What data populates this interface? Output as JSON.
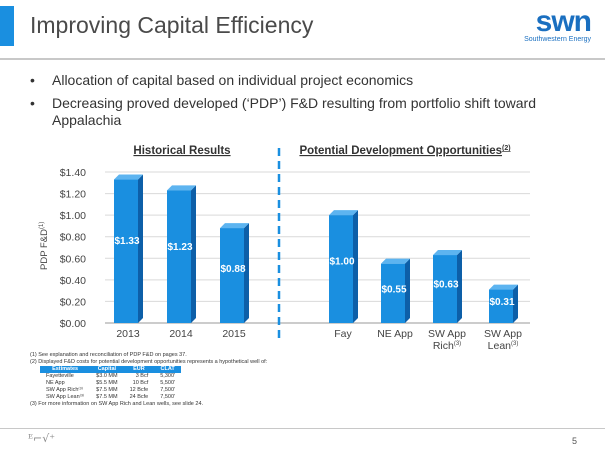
{
  "header": {
    "title": "Improving Capital Efficiency",
    "logo_main": "swn",
    "logo_sub": "Southwestern Energy"
  },
  "bullets": [
    "Allocation of capital based on individual project economics",
    "Decreasing proved developed (‘PDP’) F&D resulting from portfolio shift toward Appalachia"
  ],
  "chart_data": {
    "type": "bar",
    "ylabel": "PDP F&D",
    "ylabel_sup": "(1)",
    "ylim": [
      0,
      1.4
    ],
    "yticks": [
      "$0.00",
      "$0.20",
      "$0.40",
      "$0.60",
      "$0.80",
      "$1.00",
      "$1.20",
      "$1.40"
    ],
    "groups": [
      {
        "title": "Historical Results",
        "title_sup": ""
      },
      {
        "title": "Potential Development Opportunities",
        "title_sup": "(2)"
      }
    ],
    "categories": [
      "2013",
      "2014",
      "2015",
      "Fay",
      "NE App",
      "SW App Rich",
      "SW App Lean"
    ],
    "category_sups": [
      "",
      "",
      "",
      "",
      "",
      "(3)",
      "(3)"
    ],
    "values": [
      1.33,
      1.23,
      0.88,
      1.0,
      0.55,
      0.63,
      0.31
    ],
    "labels": [
      "$1.33",
      "$1.23",
      "$0.88",
      "$1.00",
      "$0.55",
      "$0.63",
      "$0.31"
    ],
    "colors": {
      "bar": "#1a8fe0",
      "bar_side": "#0d5fa8",
      "bar_top": "#5db4f0",
      "divider": "#1a8fe0"
    },
    "grid": true
  },
  "footnotes": {
    "n1": "(1)   See explanation and reconciliation of PDP F&D on pages 37.",
    "n2": "(2)   Displayed F&D costs for potential development opportunities represents a hypothetical well of:",
    "table_headers": [
      "Estimates",
      "Capital",
      "EUR",
      "CLAT"
    ],
    "table_rows": [
      [
        "Fayetteville",
        "$3.0 MM",
        "3 Bcf",
        "5,300'"
      ],
      [
        "NE App",
        "$5.5 MM",
        "10 Bcf",
        "5,500'"
      ],
      [
        "SW App Rich⁽³⁾",
        "$7.5 MM",
        "12 Bcfe",
        "7,500'"
      ],
      [
        "SW App Lean⁽³⁾",
        "$7.5 MM",
        "24 Bcfe",
        "7,500'"
      ]
    ],
    "n3": "(3)   For more information on SW App Rich and Lean wells, see slide 24."
  },
  "footer": {
    "page_number": "5",
    "logo_text": "ᴱ⌐√⁺"
  }
}
